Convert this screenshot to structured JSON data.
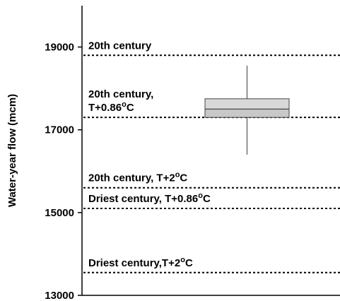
{
  "chart_data": {
    "type": "box",
    "ylabel": "Water-year flow (mcm)",
    "ylim": [
      13000,
      20000
    ],
    "yticks": [
      13000,
      15000,
      17000,
      19000
    ],
    "grid": false,
    "box": {
      "whisker_low": 16400,
      "q1": 17300,
      "median": 17500,
      "q3": 17750,
      "whisker_high": 18550,
      "fill_lower": "#c8c8c8",
      "fill_upper": "#d8d8d8"
    },
    "reference_lines": [
      {
        "value": 18800,
        "label": "20th century",
        "sup": ""
      },
      {
        "value": 17300,
        "label": "20th century,",
        "label2": "T+0.86",
        "sup": "o",
        "suffix": "C"
      },
      {
        "value": 15600,
        "label": "20th century, T+2",
        "sup": "o",
        "suffix": "C"
      },
      {
        "value": 15100,
        "label": "Driest century, T+0.86",
        "sup": "o",
        "suffix": "C"
      },
      {
        "value": 13550,
        "label": "Driest century,T+2",
        "sup": "o",
        "suffix": "C"
      }
    ]
  }
}
